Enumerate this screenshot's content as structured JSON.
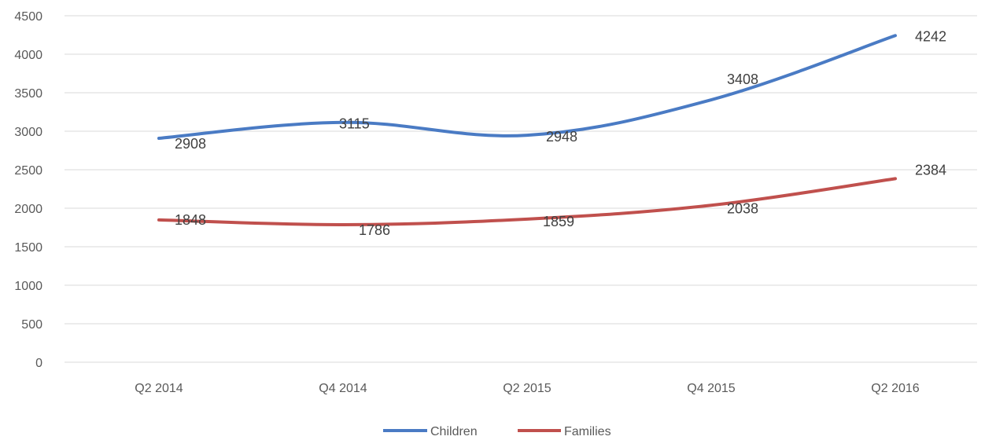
{
  "chart_data": {
    "type": "line",
    "categories": [
      "Q2 2014",
      "Q4 2014",
      "Q2 2015",
      "Q4 2015",
      "Q2 2016"
    ],
    "series": [
      {
        "name": "Children",
        "values": [
          2908,
          3115,
          2948,
          3408,
          4242
        ],
        "color": "#4a7bc4"
      },
      {
        "name": "Families",
        "values": [
          1848,
          1786,
          1859,
          2038,
          2384
        ],
        "color": "#c0504d"
      }
    ],
    "ylim": [
      0,
      4500
    ],
    "yticks": [
      0,
      500,
      1000,
      1500,
      2000,
      2500,
      3000,
      3500,
      4000,
      4500
    ],
    "grid": true,
    "legend_position": "bottom",
    "data_labels": true
  }
}
